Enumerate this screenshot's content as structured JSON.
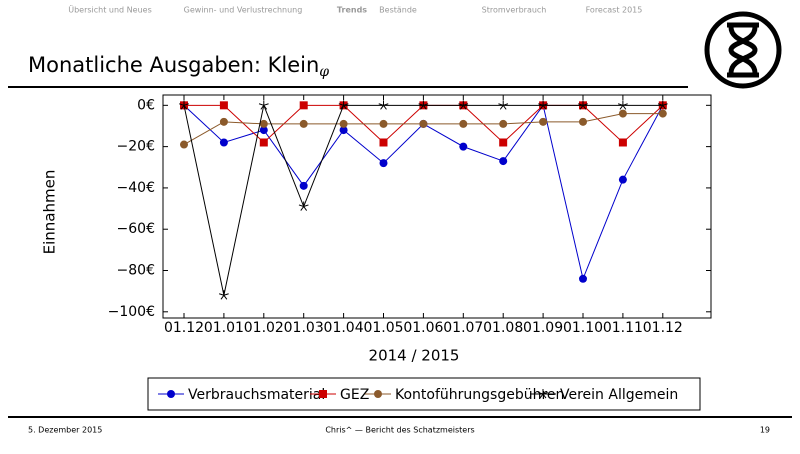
{
  "nav": {
    "items": [
      "Übersicht und Neues",
      "Gewinn- und Verlustrechnung",
      "Trends",
      "Bestände",
      "Stromverbrauch",
      "Forecast 2015"
    ],
    "active": 2
  },
  "slide_title": "Monatliche Ausgaben: Klein",
  "slide_title_subscript": "φ",
  "chart_data": {
    "type": "line",
    "x_label": "2014 / 2015",
    "y_label": "Einnahmen",
    "categories": [
      "01.12",
      "01.01",
      "01.02",
      "01.03",
      "01.04",
      "01.05",
      "01.06",
      "01.07",
      "01.08",
      "01.09",
      "01.10",
      "01.11",
      "01.12"
    ],
    "series": [
      {
        "name": "Verbrauchsmaterial",
        "color": "#0000cc",
        "marker": "circle",
        "values": [
          0,
          -18,
          -12,
          -39,
          -12,
          -28,
          -9,
          -20,
          -27,
          0,
          -84,
          -36,
          0
        ]
      },
      {
        "name": "GEZ",
        "color": "#cc0000",
        "marker": "square",
        "values": [
          0,
          0,
          -18,
          0,
          0,
          -18,
          0,
          0,
          -18,
          0,
          0,
          -18,
          0
        ]
      },
      {
        "name": "Kontoführungsgebühren",
        "color": "#8b5a2b",
        "marker": "circle",
        "values": [
          -19,
          -8,
          -9,
          -9,
          -9,
          -9,
          -9,
          -9,
          -9,
          -8,
          -8,
          -4,
          -4
        ]
      },
      {
        "name": "Verein Allgemein",
        "color": "#000000",
        "marker": "star",
        "values": [
          0,
          -92,
          0,
          -49,
          0,
          0,
          0,
          0,
          0,
          0,
          0,
          0,
          0
        ]
      }
    ],
    "ylim": [
      -103,
      5
    ],
    "yticks": [
      {
        "value": 0,
        "label": "0€"
      },
      {
        "value": -20,
        "label": "−20€"
      },
      {
        "value": -40,
        "label": "−40€"
      },
      {
        "value": -60,
        "label": "−60€"
      },
      {
        "value": -80,
        "label": "−80€"
      },
      {
        "value": -100,
        "label": "−100€"
      }
    ],
    "grid": false,
    "legend": "bottom"
  },
  "footer": {
    "date": "5. Dezember 2015",
    "center": "Chris^ — Bericht des Schatzmeisters",
    "page": "19"
  }
}
